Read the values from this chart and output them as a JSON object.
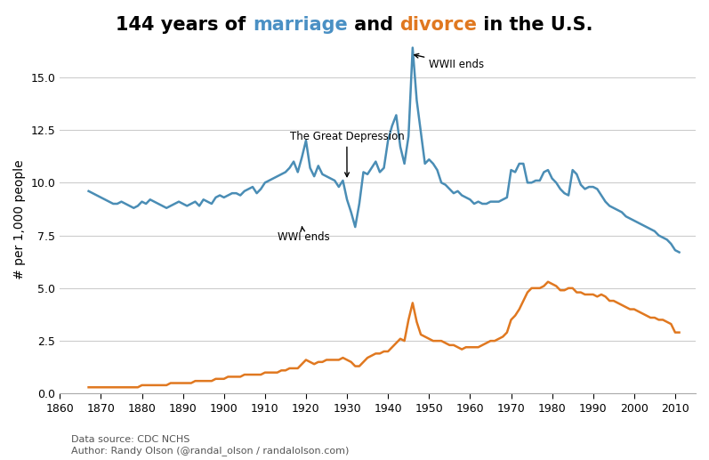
{
  "title_str_parts": [
    [
      "144 years of ",
      "#000000"
    ],
    [
      "marriage",
      "#4a90c4"
    ],
    [
      " and ",
      "#000000"
    ],
    [
      "divorce",
      "#e07820"
    ],
    [
      " in the U.S.",
      "#000000"
    ]
  ],
  "marriage_data": {
    "years": [
      1867,
      1868,
      1869,
      1870,
      1871,
      1872,
      1873,
      1874,
      1875,
      1876,
      1877,
      1878,
      1879,
      1880,
      1881,
      1882,
      1883,
      1884,
      1885,
      1886,
      1887,
      1888,
      1889,
      1890,
      1891,
      1892,
      1893,
      1894,
      1895,
      1896,
      1897,
      1898,
      1899,
      1900,
      1901,
      1902,
      1903,
      1904,
      1905,
      1906,
      1907,
      1908,
      1909,
      1910,
      1911,
      1912,
      1913,
      1914,
      1915,
      1916,
      1917,
      1918,
      1919,
      1920,
      1921,
      1922,
      1923,
      1924,
      1925,
      1926,
      1927,
      1928,
      1929,
      1930,
      1931,
      1932,
      1933,
      1934,
      1935,
      1936,
      1937,
      1938,
      1939,
      1940,
      1941,
      1942,
      1943,
      1944,
      1945,
      1946,
      1947,
      1948,
      1949,
      1950,
      1951,
      1952,
      1953,
      1954,
      1955,
      1956,
      1957,
      1958,
      1959,
      1960,
      1961,
      1962,
      1963,
      1964,
      1965,
      1966,
      1967,
      1968,
      1969,
      1970,
      1971,
      1972,
      1973,
      1974,
      1975,
      1976,
      1977,
      1978,
      1979,
      1980,
      1981,
      1982,
      1983,
      1984,
      1985,
      1986,
      1987,
      1988,
      1989,
      1990,
      1991,
      1992,
      1993,
      1994,
      1995,
      1996,
      1997,
      1998,
      1999,
      2000,
      2001,
      2002,
      2003,
      2004,
      2005,
      2006,
      2007,
      2008,
      2009,
      2010,
      2011
    ],
    "values": [
      9.6,
      9.5,
      9.4,
      9.3,
      9.2,
      9.1,
      9.0,
      9.0,
      9.1,
      9.0,
      8.9,
      8.8,
      8.9,
      9.1,
      9.0,
      9.2,
      9.1,
      9.0,
      8.9,
      8.8,
      8.9,
      9.0,
      9.1,
      9.0,
      8.9,
      9.0,
      9.1,
      8.9,
      9.2,
      9.1,
      9.0,
      9.3,
      9.4,
      9.3,
      9.4,
      9.5,
      9.5,
      9.4,
      9.6,
      9.7,
      9.8,
      9.5,
      9.7,
      10.0,
      10.1,
      10.2,
      10.3,
      10.4,
      10.5,
      10.7,
      11.0,
      10.5,
      11.2,
      12.0,
      10.7,
      10.3,
      10.8,
      10.4,
      10.3,
      10.2,
      10.1,
      9.8,
      10.1,
      9.2,
      8.6,
      7.9,
      9.0,
      10.5,
      10.4,
      10.7,
      11.0,
      10.5,
      10.7,
      12.0,
      12.7,
      13.2,
      11.7,
      10.9,
      12.2,
      16.4,
      13.9,
      12.4,
      10.9,
      11.1,
      10.9,
      10.6,
      10.0,
      9.9,
      9.7,
      9.5,
      9.6,
      9.4,
      9.3,
      9.2,
      9.0,
      9.1,
      9.0,
      9.0,
      9.1,
      9.1,
      9.1,
      9.2,
      9.3,
      10.6,
      10.5,
      10.9,
      10.9,
      10.0,
      10.0,
      10.1,
      10.1,
      10.5,
      10.6,
      10.2,
      10.0,
      9.7,
      9.5,
      9.4,
      10.6,
      10.4,
      9.9,
      9.7,
      9.8,
      9.8,
      9.7,
      9.4,
      9.1,
      8.9,
      8.8,
      8.7,
      8.6,
      8.4,
      8.3,
      8.2,
      8.1,
      8.0,
      7.9,
      7.8,
      7.7,
      7.5,
      7.4,
      7.3,
      7.1,
      6.8,
      6.7
    ]
  },
  "divorce_data": {
    "years": [
      1867,
      1868,
      1869,
      1870,
      1871,
      1872,
      1873,
      1874,
      1875,
      1876,
      1877,
      1878,
      1879,
      1880,
      1881,
      1882,
      1883,
      1884,
      1885,
      1886,
      1887,
      1888,
      1889,
      1890,
      1891,
      1892,
      1893,
      1894,
      1895,
      1896,
      1897,
      1898,
      1899,
      1900,
      1901,
      1902,
      1903,
      1904,
      1905,
      1906,
      1907,
      1908,
      1909,
      1910,
      1911,
      1912,
      1913,
      1914,
      1915,
      1916,
      1917,
      1918,
      1919,
      1920,
      1921,
      1922,
      1923,
      1924,
      1925,
      1926,
      1927,
      1928,
      1929,
      1930,
      1931,
      1932,
      1933,
      1934,
      1935,
      1936,
      1937,
      1938,
      1939,
      1940,
      1941,
      1942,
      1943,
      1944,
      1945,
      1946,
      1947,
      1948,
      1949,
      1950,
      1951,
      1952,
      1953,
      1954,
      1955,
      1956,
      1957,
      1958,
      1959,
      1960,
      1961,
      1962,
      1963,
      1964,
      1965,
      1966,
      1967,
      1968,
      1969,
      1970,
      1971,
      1972,
      1973,
      1974,
      1975,
      1976,
      1977,
      1978,
      1979,
      1980,
      1981,
      1982,
      1983,
      1984,
      1985,
      1986,
      1987,
      1988,
      1989,
      1990,
      1991,
      1992,
      1993,
      1994,
      1995,
      1996,
      1997,
      1998,
      1999,
      2000,
      2001,
      2002,
      2003,
      2004,
      2005,
      2006,
      2007,
      2008,
      2009,
      2010,
      2011
    ],
    "values": [
      0.3,
      0.3,
      0.3,
      0.3,
      0.3,
      0.3,
      0.3,
      0.3,
      0.3,
      0.3,
      0.3,
      0.3,
      0.3,
      0.4,
      0.4,
      0.4,
      0.4,
      0.4,
      0.4,
      0.4,
      0.5,
      0.5,
      0.5,
      0.5,
      0.5,
      0.5,
      0.6,
      0.6,
      0.6,
      0.6,
      0.6,
      0.7,
      0.7,
      0.7,
      0.8,
      0.8,
      0.8,
      0.8,
      0.9,
      0.9,
      0.9,
      0.9,
      0.9,
      1.0,
      1.0,
      1.0,
      1.0,
      1.1,
      1.1,
      1.2,
      1.2,
      1.2,
      1.4,
      1.6,
      1.5,
      1.4,
      1.5,
      1.5,
      1.6,
      1.6,
      1.6,
      1.6,
      1.7,
      1.6,
      1.5,
      1.3,
      1.3,
      1.5,
      1.7,
      1.8,
      1.9,
      1.9,
      2.0,
      2.0,
      2.2,
      2.4,
      2.6,
      2.5,
      3.5,
      4.3,
      3.4,
      2.8,
      2.7,
      2.6,
      2.5,
      2.5,
      2.5,
      2.4,
      2.3,
      2.3,
      2.2,
      2.1,
      2.2,
      2.2,
      2.2,
      2.2,
      2.3,
      2.4,
      2.5,
      2.5,
      2.6,
      2.7,
      2.9,
      3.5,
      3.7,
      4.0,
      4.4,
      4.8,
      5.0,
      5.0,
      5.0,
      5.1,
      5.3,
      5.2,
      5.1,
      4.9,
      4.9,
      5.0,
      5.0,
      4.8,
      4.8,
      4.7,
      4.7,
      4.7,
      4.6,
      4.7,
      4.6,
      4.4,
      4.4,
      4.3,
      4.2,
      4.1,
      4.0,
      4.0,
      3.9,
      3.8,
      3.7,
      3.6,
      3.6,
      3.5,
      3.5,
      3.4,
      3.3,
      2.9,
      2.9
    ]
  },
  "marriage_color": "#4a8db5",
  "divorce_color": "#e07820",
  "background_color": "#ffffff",
  "grid_color": "#cccccc",
  "xlim": [
    1860,
    2015
  ],
  "ylim": [
    0,
    16.5
  ],
  "yticks": [
    0.0,
    2.5,
    5.0,
    7.5,
    10.0,
    12.5,
    15.0
  ],
  "xticks": [
    1860,
    1870,
    1880,
    1890,
    1900,
    1910,
    1920,
    1930,
    1940,
    1950,
    1960,
    1970,
    1980,
    1990,
    2000,
    2010
  ],
  "ylabel": "# per 1,000 people",
  "source_text": "Data source: CDC NCHS\nAuthor: Randy Olson (@randal_olson / randalolson.com)",
  "title_fontsize": 15,
  "label_fontsize": 10,
  "tick_fontsize": 9,
  "source_fontsize": 8,
  "line_width": 1.8
}
